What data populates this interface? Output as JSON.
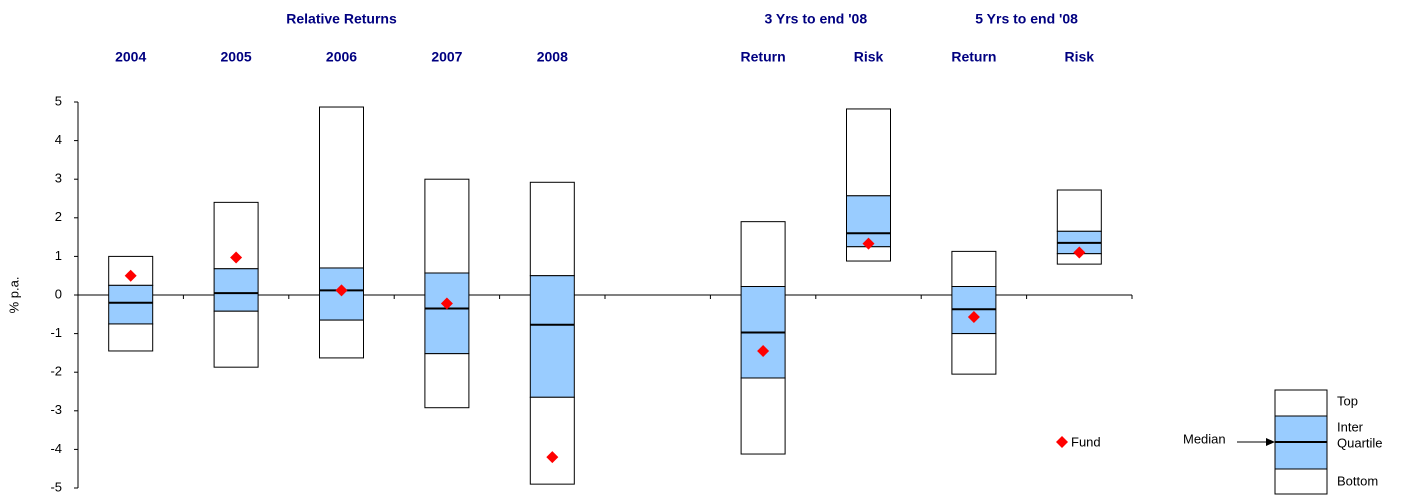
{
  "chart_data": {
    "type": "box",
    "group_headers": [
      "Relative Returns",
      "3 Yrs to end '08",
      "5 Yrs to end '08"
    ],
    "categories": [
      "2004",
      "2005",
      "2006",
      "2007",
      "2008",
      null,
      "Return",
      "Risk",
      "Return",
      "Risk"
    ],
    "y_label": "% p.a.",
    "ylim": [
      -5,
      5
    ],
    "yticks": [
      -5,
      -4,
      -3,
      -2,
      -1,
      0,
      1,
      2,
      3,
      4,
      5
    ],
    "boxes": {
      "top": [
        1.0,
        2.4,
        4.87,
        3.0,
        2.92,
        null,
        1.9,
        4.82,
        1.13,
        2.72
      ],
      "upper_quartile": [
        0.25,
        0.68,
        0.7,
        0.57,
        0.5,
        null,
        0.22,
        2.57,
        0.22,
        1.65
      ],
      "median": [
        -0.2,
        0.05,
        0.12,
        -0.35,
        -0.77,
        null,
        -0.97,
        1.6,
        -0.37,
        1.35
      ],
      "lower_quartile": [
        -0.75,
        -0.42,
        -0.65,
        -1.52,
        -2.65,
        null,
        -2.15,
        1.25,
        -1.0,
        1.07
      ],
      "bottom": [
        -1.45,
        -1.87,
        -1.63,
        -2.92,
        -4.9,
        null,
        -4.12,
        0.88,
        -2.05,
        0.8
      ]
    },
    "box_color": "#ffffff",
    "quartile_color": "#99ccff",
    "series": [
      {
        "name": "Fund",
        "color": "#ff0000",
        "values": [
          0.5,
          0.97,
          0.12,
          -0.22,
          -4.2,
          null,
          -1.45,
          1.33,
          -0.57,
          1.1
        ]
      }
    ],
    "legend_key": {
      "top": "Top",
      "inter_quartile": [
        "Inter",
        "Quartile"
      ],
      "bottom": "Bottom",
      "median": "Median"
    }
  }
}
